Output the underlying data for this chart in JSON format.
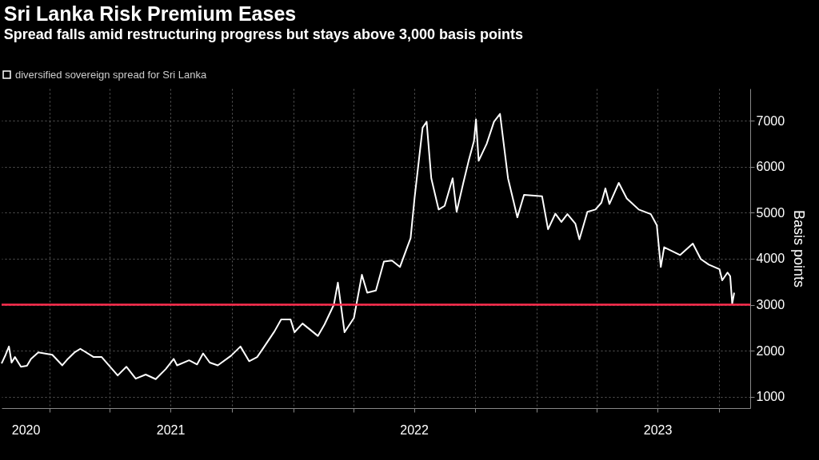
{
  "chart_data": {
    "type": "line",
    "title": "Sri Lanka Risk Premium Eases",
    "subtitle": "Spread falls amid restructuring progress but stays above 3,000 basis points",
    "ylabel": "Basis points",
    "series": [
      {
        "name": "diversified sovereign spread for Sri Lanka",
        "color": "#ffffff",
        "x": [
          "2020-10-21",
          "2020-10-27",
          "2020-11-01",
          "2020-11-05",
          "2020-11-10",
          "2020-11-19",
          "2020-11-28",
          "2020-12-04",
          "2020-12-15",
          "2021-01-05",
          "2021-01-20",
          "2021-01-27",
          "2021-02-08",
          "2021-02-16",
          "2021-03-08",
          "2021-03-20",
          "2021-04-13",
          "2021-04-26",
          "2021-05-10",
          "2021-05-25",
          "2021-06-09",
          "2021-06-24",
          "2021-07-06",
          "2021-07-11",
          "2021-07-29",
          "2021-08-10",
          "2021-08-19",
          "2021-08-29",
          "2021-09-10",
          "2021-09-30",
          "2021-10-14",
          "2021-10-27",
          "2021-11-08",
          "2021-11-16",
          "2021-12-04",
          "2021-12-14",
          "2021-12-28",
          "2022-01-03",
          "2022-01-15",
          "2022-02-07",
          "2022-02-17",
          "2022-03-03",
          "2022-03-09",
          "2022-03-19",
          "2022-04-02",
          "2022-04-14",
          "2022-04-22",
          "2022-05-05",
          "2022-05-17",
          "2022-05-29",
          "2022-06-10",
          "2022-06-26",
          "2022-07-02",
          "2022-07-14",
          "2022-07-20",
          "2022-07-27",
          "2022-08-07",
          "2022-08-16",
          "2022-08-28",
          "2022-09-03",
          "2022-09-13",
          "2022-09-21",
          "2022-09-29",
          "2022-10-02",
          "2022-10-06",
          "2022-10-18",
          "2022-10-29",
          "2022-11-07",
          "2022-11-19",
          "2022-12-03",
          "2022-12-13",
          "2023-01-09",
          "2023-01-18",
          "2023-01-29",
          "2023-02-07",
          "2023-02-16",
          "2023-02-28",
          "2023-03-06",
          "2023-03-18",
          "2023-03-30",
          "2023-04-08",
          "2023-04-14",
          "2023-04-20",
          "2023-05-04",
          "2023-05-16",
          "2023-06-03",
          "2023-06-21",
          "2023-06-30",
          "2023-07-06",
          "2023-07-11",
          "2023-08-04",
          "2023-08-23",
          "2023-09-04",
          "2023-09-16",
          "2023-10-02",
          "2023-10-06",
          "2023-10-14",
          "2023-10-18",
          "2023-10-21",
          "2023-10-24"
        ],
        "values": [
          1720,
          1910,
          2090,
          1740,
          1860,
          1650,
          1670,
          1820,
          1960,
          1910,
          1680,
          1800,
          1970,
          2040,
          1860,
          1860,
          1460,
          1650,
          1390,
          1480,
          1380,
          1600,
          1820,
          1680,
          1790,
          1700,
          1940,
          1740,
          1680,
          1890,
          2090,
          1770,
          1860,
          2030,
          2420,
          2680,
          2680,
          2400,
          2590,
          2320,
          2570,
          3000,
          3480,
          2400,
          2710,
          3650,
          3260,
          3310,
          3940,
          3960,
          3820,
          4450,
          5330,
          6850,
          6980,
          5750,
          5070,
          5150,
          5750,
          5020,
          5650,
          6130,
          6560,
          7030,
          6130,
          6500,
          6980,
          7150,
          5750,
          4900,
          5390,
          5360,
          4640,
          4980,
          4800,
          4970,
          4760,
          4420,
          5020,
          5070,
          5220,
          5530,
          5190,
          5650,
          5310,
          5070,
          4970,
          4730,
          3820,
          4250,
          4080,
          4330,
          3990,
          3870,
          3770,
          3530,
          3700,
          3620,
          3020,
          3260
        ]
      }
    ],
    "xlim": [
      "2020-10-21",
      "2023-11-17"
    ],
    "xticks": [
      {
        "value": "2020-11-26",
        "label": "2020"
      },
      {
        "value": "2021-01-01",
        "label": null
      },
      {
        "value": "2021-04-01",
        "label": null
      },
      {
        "value": "2021-07-01",
        "label": "2021"
      },
      {
        "value": "2021-10-01",
        "label": null
      },
      {
        "value": "2022-01-01",
        "label": null
      },
      {
        "value": "2022-04-01",
        "label": null
      },
      {
        "value": "2022-07-01",
        "label": "2022"
      },
      {
        "value": "2022-10-01",
        "label": null
      },
      {
        "value": "2023-01-01",
        "label": null
      },
      {
        "value": "2023-04-01",
        "label": null
      },
      {
        "value": "2023-07-01",
        "label": "2023"
      },
      {
        "value": "2023-10-01",
        "label": null
      }
    ],
    "ylim": [
      750,
      7700
    ],
    "yticks": [
      1000,
      2000,
      3000,
      4000,
      5000,
      6000,
      7000
    ],
    "grid": true,
    "legend": "top left",
    "ref_lines": [
      {
        "axis": "y",
        "value": 3000,
        "color": "#ff2e4f"
      }
    ]
  }
}
